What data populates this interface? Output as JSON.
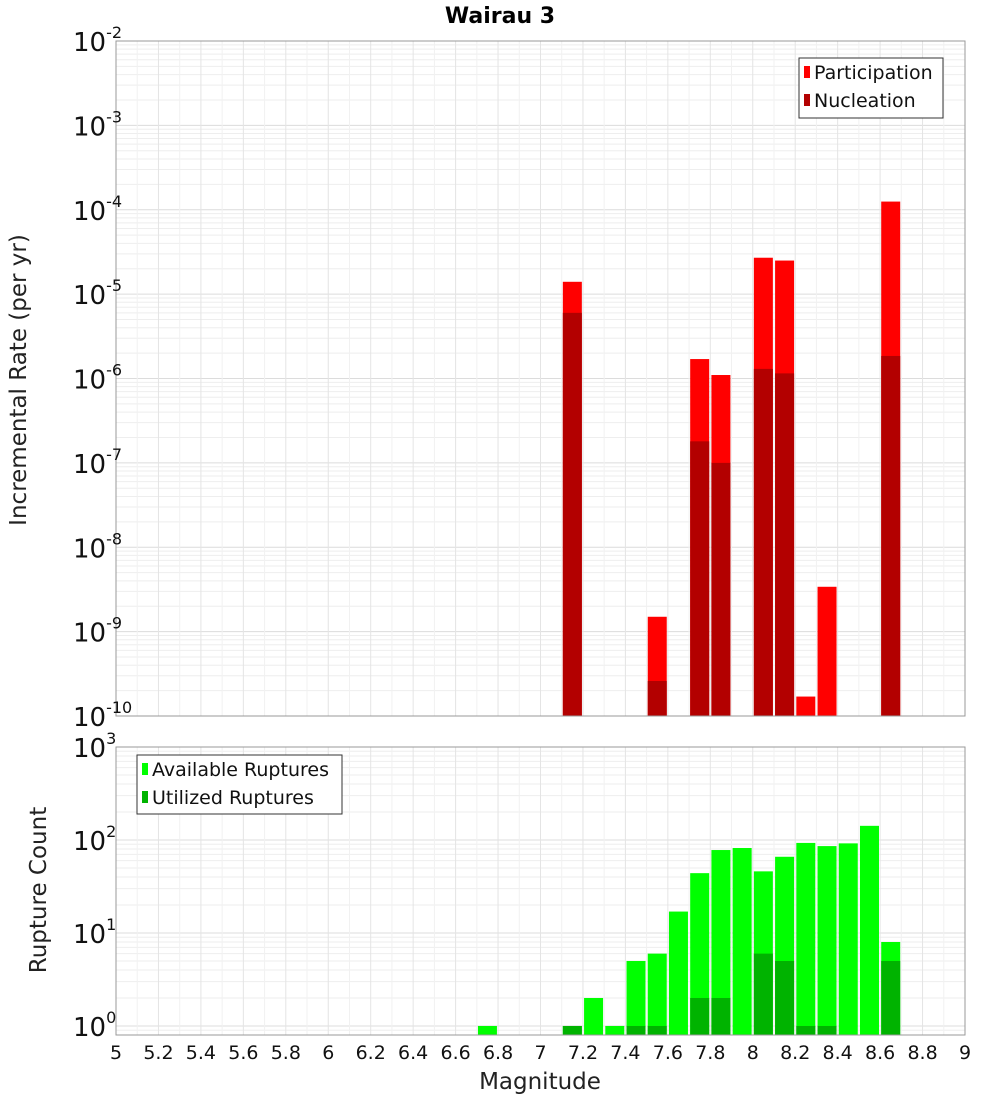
{
  "chart_data": [
    {
      "type": "bar",
      "title": "Wairau 3",
      "ylabel": "Incremental Rate (per yr)",
      "xlabel": "",
      "yscale": "log",
      "ylim": [
        1e-10,
        0.01
      ],
      "xlim": [
        5,
        9
      ],
      "grid": true,
      "legend_position": "top-right",
      "ytick_labels": [
        {
          "base": "10",
          "exp": "-10"
        },
        {
          "base": "10",
          "exp": "-9"
        },
        {
          "base": "10",
          "exp": "-8"
        },
        {
          "base": "10",
          "exp": "-7"
        },
        {
          "base": "10",
          "exp": "-6"
        },
        {
          "base": "10",
          "exp": "-5"
        },
        {
          "base": "10",
          "exp": "-4"
        },
        {
          "base": "10",
          "exp": "-3"
        },
        {
          "base": "10",
          "exp": "-2"
        }
      ],
      "series": [
        {
          "name": "Participation",
          "color": "#ff0000",
          "x": [
            7.15,
            7.55,
            7.75,
            7.85,
            8.05,
            8.15,
            8.25,
            8.35,
            8.65
          ],
          "values": [
            1.4e-05,
            1.5e-09,
            1.7e-06,
            1.1e-06,
            2.7e-05,
            2.5e-05,
            1.7e-10,
            3.4e-09,
            0.000125
          ]
        },
        {
          "name": "Nucleation",
          "color": "#b30000",
          "x": [
            7.15,
            7.55,
            7.75,
            7.85,
            8.05,
            8.15,
            8.65
          ],
          "values": [
            6e-06,
            2.6e-10,
            1.8e-07,
            1e-07,
            1.3e-06,
            1.15e-06,
            1.85e-06
          ]
        }
      ]
    },
    {
      "type": "bar",
      "title": "",
      "ylabel": "Rupture Count",
      "xlabel": "Magnitude",
      "yscale": "log",
      "ylim": [
        0.8,
        1000
      ],
      "xlim": [
        5,
        9
      ],
      "grid": true,
      "legend_position": "top-left",
      "ytick_labels": [
        {
          "base": "10",
          "exp": "0"
        },
        {
          "base": "10",
          "exp": "1"
        },
        {
          "base": "10",
          "exp": "2"
        },
        {
          "base": "10",
          "exp": "3"
        }
      ],
      "xtick_labels": [
        "5",
        "5.2",
        "5.4",
        "5.6",
        "5.8",
        "6",
        "6.2",
        "6.4",
        "6.6",
        "6.8",
        "7",
        "7.2",
        "7.4",
        "7.6",
        "7.8",
        "8",
        "8.2",
        "8.4",
        "8.6",
        "8.8",
        "9"
      ],
      "series": [
        {
          "name": "Available Ruptures",
          "color": "#00ff00",
          "x": [
            6.75,
            7.15,
            7.25,
            7.35,
            7.45,
            7.55,
            7.65,
            7.75,
            7.85,
            7.95,
            8.05,
            8.15,
            8.25,
            8.35,
            8.45,
            8.55,
            8.65
          ],
          "values": [
            1,
            1,
            2,
            1,
            5,
            6,
            17,
            44,
            78,
            82,
            46,
            66,
            93,
            86,
            92,
            142,
            8
          ]
        },
        {
          "name": "Utilized Ruptures",
          "color": "#00b300",
          "x": [
            7.15,
            7.45,
            7.55,
            7.75,
            7.85,
            8.05,
            8.15,
            8.25,
            8.35,
            8.65
          ],
          "values": [
            1,
            1,
            1,
            2,
            2,
            6,
            5,
            1,
            1,
            5
          ]
        }
      ]
    }
  ]
}
